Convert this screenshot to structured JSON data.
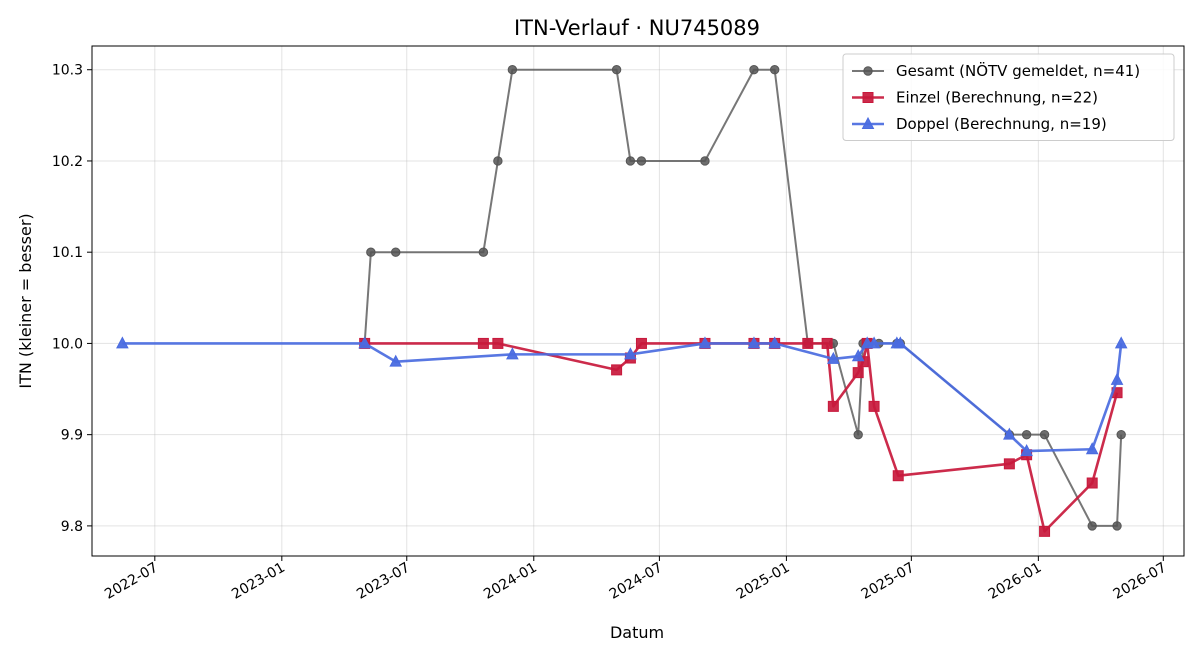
{
  "chart_data": {
    "type": "line",
    "title": "ITN-Verlauf · NU745089",
    "xlabel": "Datum",
    "ylabel": "ITN  (kleiner = besser)",
    "x_type": "date",
    "xlim": [
      "2022-04-01",
      "2026-07-31"
    ],
    "ylim": [
      9.767,
      10.326
    ],
    "grid": true,
    "legend_position": "top-right",
    "xticks": [
      {
        "date": "2022-07-01",
        "label": "2022-07"
      },
      {
        "date": "2023-01-01",
        "label": "2023-01"
      },
      {
        "date": "2023-07-01",
        "label": "2023-07"
      },
      {
        "date": "2024-01-01",
        "label": "2024-01"
      },
      {
        "date": "2024-07-01",
        "label": "2024-07"
      },
      {
        "date": "2025-01-01",
        "label": "2025-01"
      },
      {
        "date": "2025-07-01",
        "label": "2025-07"
      },
      {
        "date": "2026-01-01",
        "label": "2026-01"
      },
      {
        "date": "2026-07-01",
        "label": "2026-07"
      }
    ],
    "yticks": [
      {
        "value": 9.8,
        "label": "9.8"
      },
      {
        "value": 9.9,
        "label": "9.9"
      },
      {
        "value": 10.0,
        "label": "10.0"
      },
      {
        "value": 10.1,
        "label": "10.1"
      },
      {
        "value": 10.2,
        "label": "10.2"
      },
      {
        "value": 10.3,
        "label": "10.3"
      }
    ],
    "series": [
      {
        "name": "Gesamt (NÖTV gemeldet, n=41)",
        "color": "#555555",
        "marker": "circle",
        "points": [
          {
            "x": "2023-05-01",
            "y": 10.0
          },
          {
            "x": "2023-05-10",
            "y": 10.1
          },
          {
            "x": "2023-06-15",
            "y": 10.1
          },
          {
            "x": "2023-10-20",
            "y": 10.1
          },
          {
            "x": "2023-11-10",
            "y": 10.2
          },
          {
            "x": "2023-12-01",
            "y": 10.3
          },
          {
            "x": "2024-04-30",
            "y": 10.3
          },
          {
            "x": "2024-05-20",
            "y": 10.2
          },
          {
            "x": "2024-06-05",
            "y": 10.2
          },
          {
            "x": "2024-09-05",
            "y": 10.2
          },
          {
            "x": "2024-11-15",
            "y": 10.3
          },
          {
            "x": "2024-12-15",
            "y": 10.3
          },
          {
            "x": "2025-02-01",
            "y": 10.0
          },
          {
            "x": "2025-03-10",
            "y": 10.0
          },
          {
            "x": "2025-04-15",
            "y": 9.9
          },
          {
            "x": "2025-04-22",
            "y": 10.0
          },
          {
            "x": "2025-05-01",
            "y": 10.0
          },
          {
            "x": "2025-05-15",
            "y": 10.0
          },
          {
            "x": "2025-06-10",
            "y": 10.0
          },
          {
            "x": "2025-06-15",
            "y": 10.0
          },
          {
            "x": "2025-11-20",
            "y": 9.9
          },
          {
            "x": "2025-12-15",
            "y": 9.9
          },
          {
            "x": "2026-01-10",
            "y": 9.9
          },
          {
            "x": "2026-03-20",
            "y": 9.8
          },
          {
            "x": "2026-04-25",
            "y": 9.8
          },
          {
            "x": "2026-05-01",
            "y": 9.9
          }
        ]
      },
      {
        "name": "Einzel (Berechnung, n=22)",
        "color": "#c8193c",
        "marker": "square",
        "points": [
          {
            "x": "2023-05-01",
            "y": 10.0
          },
          {
            "x": "2023-10-20",
            "y": 10.0
          },
          {
            "x": "2023-11-10",
            "y": 10.0
          },
          {
            "x": "2024-04-30",
            "y": 9.971
          },
          {
            "x": "2024-05-20",
            "y": 9.984
          },
          {
            "x": "2024-06-05",
            "y": 10.0
          },
          {
            "x": "2024-09-05",
            "y": 10.0
          },
          {
            "x": "2024-11-15",
            "y": 10.0
          },
          {
            "x": "2024-12-15",
            "y": 10.0
          },
          {
            "x": "2025-02-01",
            "y": 10.0
          },
          {
            "x": "2025-03-01",
            "y": 10.0
          },
          {
            "x": "2025-03-10",
            "y": 9.931
          },
          {
            "x": "2025-04-15",
            "y": 9.968
          },
          {
            "x": "2025-04-22",
            "y": 9.98
          },
          {
            "x": "2025-04-28",
            "y": 10.0
          },
          {
            "x": "2025-05-08",
            "y": 9.931
          },
          {
            "x": "2025-06-12",
            "y": 9.855
          },
          {
            "x": "2025-11-20",
            "y": 9.868
          },
          {
            "x": "2025-12-15",
            "y": 9.878
          },
          {
            "x": "2026-01-10",
            "y": 9.794
          },
          {
            "x": "2026-03-20",
            "y": 9.847
          },
          {
            "x": "2026-04-25",
            "y": 9.946
          }
        ]
      },
      {
        "name": "Doppel (Berechnung, n=19)",
        "color": "#4a6be0",
        "marker": "triangle",
        "points": [
          {
            "x": "2022-05-15",
            "y": 10.0
          },
          {
            "x": "2023-05-01",
            "y": 10.0
          },
          {
            "x": "2023-06-15",
            "y": 9.98
          },
          {
            "x": "2023-12-01",
            "y": 9.988
          },
          {
            "x": "2024-05-20",
            "y": 9.988
          },
          {
            "x": "2024-09-05",
            "y": 10.0
          },
          {
            "x": "2024-11-15",
            "y": 10.0
          },
          {
            "x": "2024-12-15",
            "y": 10.0
          },
          {
            "x": "2025-03-10",
            "y": 9.983
          },
          {
            "x": "2025-04-15",
            "y": 9.986
          },
          {
            "x": "2025-04-28",
            "y": 10.0
          },
          {
            "x": "2025-05-08",
            "y": 10.0
          },
          {
            "x": "2025-06-10",
            "y": 10.0
          },
          {
            "x": "2025-06-15",
            "y": 10.0
          },
          {
            "x": "2025-11-20",
            "y": 9.9
          },
          {
            "x": "2025-12-15",
            "y": 9.882
          },
          {
            "x": "2026-03-20",
            "y": 9.884
          },
          {
            "x": "2026-04-25",
            "y": 9.96
          },
          {
            "x": "2026-05-01",
            "y": 10.0
          }
        ]
      }
    ]
  }
}
